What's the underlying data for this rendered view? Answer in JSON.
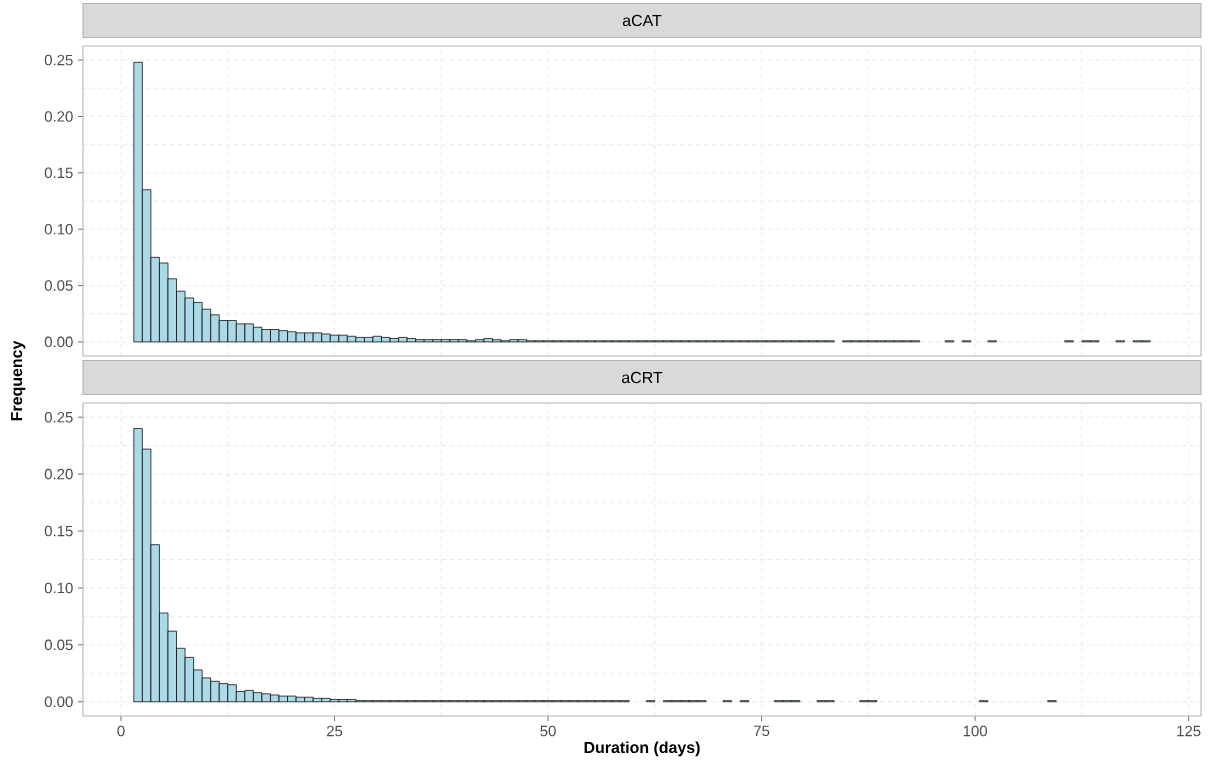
{
  "chart_data": [
    {
      "type": "histogram",
      "title": "aCAT",
      "ylabel": "Frequency",
      "color": "#add8e6",
      "grid": true,
      "tick_labels": "y",
      "xlim": [
        -4.45,
        126.45
      ],
      "ylim": [
        -0.0125,
        0.2625
      ],
      "xticks": [
        0,
        25,
        50,
        75,
        100,
        125
      ],
      "yticks": [
        {
          "value": 0,
          "label": "0.00"
        },
        {
          "value": 0.05,
          "label": "0.05"
        },
        {
          "value": 0.1,
          "label": "0.10"
        },
        {
          "value": 0.15,
          "label": "0.15"
        },
        {
          "value": 0.2,
          "label": "0.20"
        },
        {
          "value": 0.25,
          "label": "0.25"
        }
      ],
      "bins": [
        1.5,
        2.5,
        3.5,
        4.5,
        5.5,
        6.5,
        7.5,
        8.5,
        9.5,
        10.5,
        11.5,
        12.5,
        13.5,
        14.5,
        15.5,
        16.5,
        17.5,
        18.5,
        19.5,
        20.5,
        21.5,
        22.5,
        23.5,
        24.5,
        25.5,
        26.5,
        27.5,
        28.5,
        29.5,
        30.5,
        31.5,
        32.5,
        33.5,
        34.5,
        35.5,
        36.5,
        37.5,
        38.5,
        39.5,
        40.5,
        41.5,
        42.5,
        43.5,
        44.5,
        45.5,
        46.5,
        47.5,
        48.5,
        49.5,
        50.5,
        51.5,
        52.5,
        53.5,
        54.5,
        55.5,
        56.5,
        57.5,
        58.5,
        59.5,
        60.5,
        61.5,
        62.5,
        63.5,
        64.5,
        65.5,
        66.5,
        67.5,
        68.5,
        69.5,
        70.5,
        71.5,
        72.5,
        73.5,
        74.5,
        75.5,
        76.5,
        77.5,
        78.5,
        79.5,
        80.5,
        81.5,
        82.5,
        83.5,
        84.5,
        85.5,
        86.5,
        87.5,
        88.5,
        89.5,
        90.5,
        91.5,
        92.5,
        93.5,
        94.5,
        95.5,
        96.5,
        97.5,
        98.5,
        99.5,
        100.5,
        101.5,
        102.5,
        103.5,
        104.5,
        105.5,
        106.5,
        107.5,
        108.5,
        109.5,
        110.5,
        111.5,
        112.5,
        113.5,
        114.5,
        115.5,
        116.5,
        117.5,
        118.5,
        119.5,
        120.5
      ],
      "values": [
        0.248,
        0.135,
        0.075,
        0.07,
        0.056,
        0.045,
        0.039,
        0.035,
        0.029,
        0.024,
        0.019,
        0.019,
        0.016,
        0.016,
        0.013,
        0.011,
        0.011,
        0.01,
        0.009,
        0.008,
        0.008,
        0.008,
        0.007,
        0.006,
        0.006,
        0.005,
        0.004,
        0.004,
        0.005,
        0.004,
        0.003,
        0.004,
        0.003,
        0.002,
        0.002,
        0.002,
        0.002,
        0.002,
        0.002,
        0.001,
        0.002,
        0.003,
        0.002,
        0.001,
        0.002,
        0.002,
        0.001,
        0.001,
        0.001,
        0.001,
        0.001,
        0.001,
        0.001,
        0.001,
        0.001,
        0.001,
        0.001,
        0.001,
        0.001,
        0.001,
        0.001,
        0.001,
        0.001,
        0.001,
        0.001,
        0.001,
        0.001,
        0.001,
        0.001,
        0.001,
        0.001,
        0.001,
        0.001,
        0.001,
        0.001,
        0.001,
        0.001,
        0.001,
        0.001,
        0.001,
        0.001,
        0.001,
        0,
        0.001,
        0.001,
        0.001,
        0.001,
        0.001,
        0.001,
        0.001,
        0.001,
        0.001,
        0,
        0,
        0,
        0.001,
        0,
        0.001,
        0,
        0,
        0.001,
        0,
        0,
        0,
        0,
        0,
        0,
        0,
        0,
        0.001,
        0,
        0.001,
        0.001,
        0,
        0,
        0.001,
        0,
        0.001,
        0.001
      ]
    },
    {
      "type": "histogram",
      "title": "aCRT",
      "xlabel": "Duration (days)",
      "color": "#add8e6",
      "grid": true,
      "xlim": [
        -4.45,
        126.45
      ],
      "ylim": [
        -0.0125,
        0.2625
      ],
      "xticks": [
        0,
        25,
        50,
        75,
        100,
        125
      ],
      "yticks": [
        {
          "value": 0,
          "label": "0.00"
        },
        {
          "value": 0.05,
          "label": "0.05"
        },
        {
          "value": 0.1,
          "label": "0.10"
        },
        {
          "value": 0.15,
          "label": "0.15"
        },
        {
          "value": 0.2,
          "label": "0.20"
        },
        {
          "value": 0.25,
          "label": "0.25"
        }
      ],
      "bins": [
        1.5,
        2.5,
        3.5,
        4.5,
        5.5,
        6.5,
        7.5,
        8.5,
        9.5,
        10.5,
        11.5,
        12.5,
        13.5,
        14.5,
        15.5,
        16.5,
        17.5,
        18.5,
        19.5,
        20.5,
        21.5,
        22.5,
        23.5,
        24.5,
        25.5,
        26.5,
        27.5,
        28.5,
        29.5,
        30.5,
        31.5,
        32.5,
        33.5,
        34.5,
        35.5,
        36.5,
        37.5,
        38.5,
        39.5,
        40.5,
        41.5,
        42.5,
        43.5,
        44.5,
        45.5,
        46.5,
        47.5,
        48.5,
        49.5,
        50.5,
        51.5,
        52.5,
        53.5,
        54.5,
        55.5,
        56.5,
        57.5,
        58.5,
        59.5,
        60.5,
        61.5,
        62.5,
        63.5,
        64.5,
        65.5,
        66.5,
        67.5,
        68.5,
        69.5,
        70.5,
        71.5,
        72.5,
        73.5,
        74.5,
        75.5,
        76.5,
        77.5,
        78.5,
        79.5,
        80.5,
        81.5,
        82.5,
        83.5,
        84.5,
        85.5,
        86.5,
        87.5,
        88.5,
        89.5,
        90.5,
        91.5,
        92.5,
        93.5,
        94.5,
        95.5,
        96.5,
        97.5,
        98.5,
        99.5,
        100.5,
        101.5,
        102.5,
        103.5,
        104.5,
        105.5,
        106.5,
        107.5,
        108.5,
        109.5
      ],
      "values": [
        0.24,
        0.222,
        0.138,
        0.078,
        0.062,
        0.047,
        0.039,
        0.028,
        0.021,
        0.018,
        0.016,
        0.015,
        0.009,
        0.01,
        0.008,
        0.007,
        0.006,
        0.005,
        0.005,
        0.004,
        0.004,
        0.003,
        0.003,
        0.002,
        0.002,
        0.002,
        0.001,
        0.001,
        0.001,
        0.001,
        0.001,
        0.001,
        0.001,
        0.001,
        0.001,
        0.001,
        0.001,
        0.001,
        0.001,
        0.001,
        0.001,
        0.001,
        0.001,
        0.001,
        0.001,
        0.001,
        0.001,
        0.001,
        0.001,
        0.001,
        0.001,
        0.001,
        0.001,
        0.001,
        0.001,
        0.001,
        0.001,
        0.001,
        0,
        0,
        0.001,
        0,
        0.001,
        0.001,
        0.001,
        0.001,
        0.001,
        0,
        0,
        0.001,
        0,
        0.001,
        0,
        0,
        0,
        0.001,
        0.001,
        0.001,
        0,
        0,
        0.001,
        0.001,
        0,
        0,
        0,
        0.001,
        0.001,
        0,
        0,
        0,
        0,
        0,
        0,
        0,
        0,
        0,
        0,
        0,
        0,
        0.001,
        0,
        0,
        0,
        0,
        0,
        0,
        0,
        0.001
      ]
    }
  ]
}
